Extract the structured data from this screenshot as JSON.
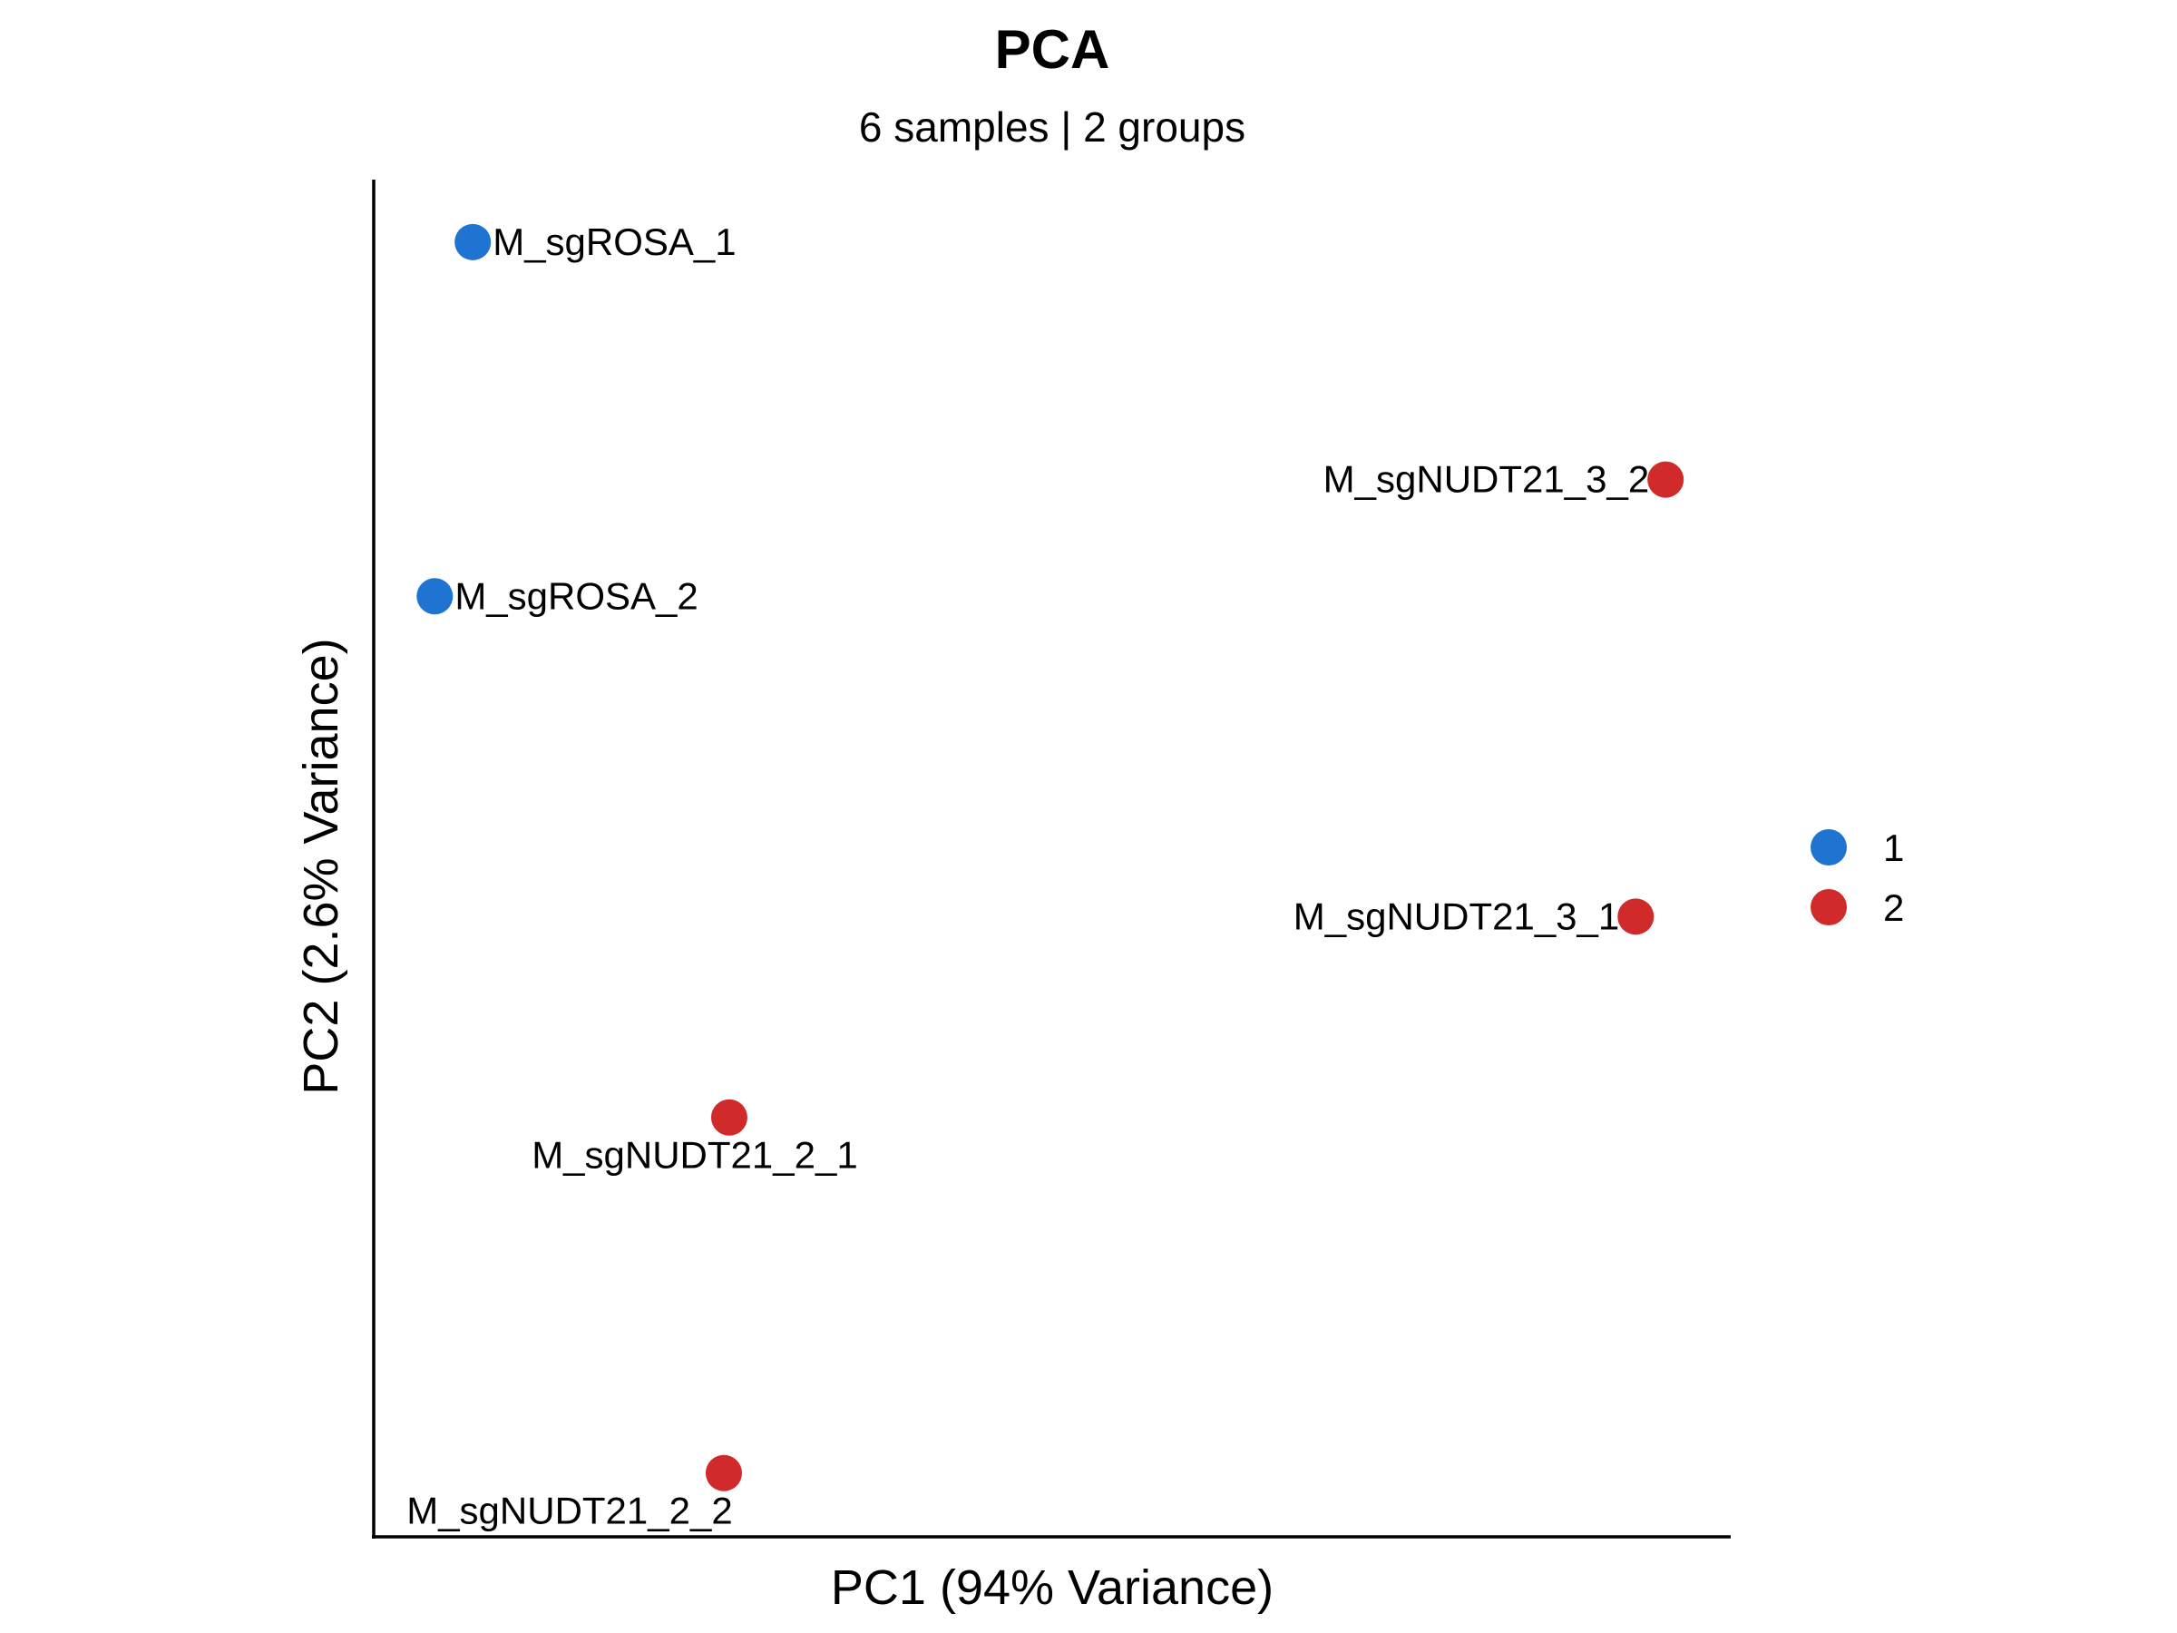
{
  "chart_data": {
    "type": "scatter",
    "title": "PCA",
    "subtitle": "6 samples | 2 groups",
    "xlabel": "PC1 (94% Variance)",
    "ylabel": "PC2 (2.6% Variance)",
    "xlim": [
      0,
      100
    ],
    "ylim": [
      0,
      100
    ],
    "grid": false,
    "legend_position": "right",
    "series": [
      {
        "name": "1",
        "color": "#1f73d1",
        "points": [
          {
            "label": "M_sgROSA_1",
            "x": 7.3,
            "y": 95.4
          },
          {
            "label": "M_sgROSA_2",
            "x": 4.5,
            "y": 69.3
          }
        ]
      },
      {
        "name": "2",
        "color": "#d12a2a",
        "points": [
          {
            "label": "M_sgNUDT21_3_2",
            "x": 95.2,
            "y": 77.9
          },
          {
            "label": "M_sgNUDT21_3_1",
            "x": 93.0,
            "y": 45.7
          },
          {
            "label": "M_sgNUDT21_2_1",
            "x": 26.2,
            "y": 30.9
          },
          {
            "label": "M_sgNUDT21_2_2",
            "x": 25.8,
            "y": 4.7
          }
        ]
      }
    ]
  }
}
